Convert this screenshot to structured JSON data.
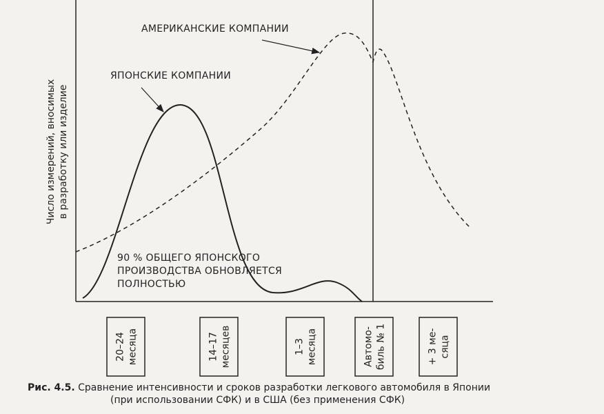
{
  "axis": {
    "y_label": [
      "Число измерений, вносимых",
      "в разработку или изделие"
    ]
  },
  "curves": {
    "american": "АМЕРИКАНСКИЕ КОМПАНИИ",
    "japanese": "ЯПОНСКИЕ КОМПАНИИ"
  },
  "note": [
    "90 % ОБЩЕГО ЯПОНСКОГО",
    "ПРОИЗВОДСТВА ОБНОВЛЯЕТСЯ",
    "ПОЛНОСТЬЮ"
  ],
  "boxes": [
    [
      "20–24",
      "месяца"
    ],
    [
      "14–17",
      "месяцев"
    ],
    [
      "1–3",
      "месяца"
    ],
    [
      "Автомо-",
      "биль № 1"
    ],
    [
      "+ 3 ме-",
      "сяца"
    ]
  ],
  "caption": {
    "label": "Рис. 4.5.",
    "lines": [
      "Сравнение интенсивности и сроков разработки легкового автомобиля в Японии",
      "(при использовании СФК) и в США (без применения СФК)"
    ]
  }
}
